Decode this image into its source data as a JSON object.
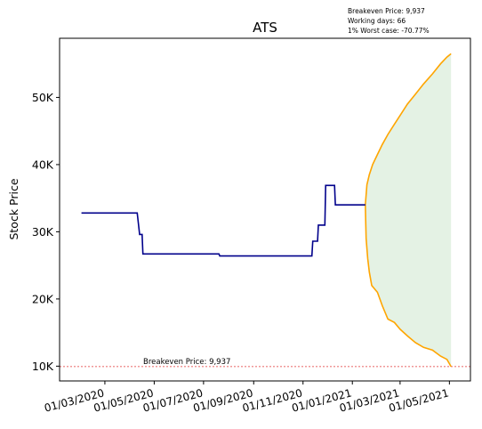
{
  "info": {
    "breakeven": "Breakeven Price: 9,937",
    "working_days": "Working days: 66",
    "worst_case": "1% Worst case: -70.77%"
  },
  "chart_data": {
    "type": "line",
    "title": "ATS",
    "xlabel": "",
    "ylabel": "Stock Price",
    "x_ticks": [
      "01/03/2020",
      "01/05/2020",
      "01/07/2020",
      "01/09/2020",
      "01/11/2020",
      "01/01/2021",
      "01/03/2021",
      "01/05/2021"
    ],
    "x_range": [
      "2020-01-05",
      "2021-05-27"
    ],
    "y_ticks": [
      10000,
      20000,
      30000,
      40000,
      50000
    ],
    "y_tick_labels": [
      "10K",
      "20K",
      "30K",
      "40K",
      "50K"
    ],
    "ylim": [
      7800,
      58800
    ],
    "grid": false,
    "breakeven": {
      "value": 9937,
      "label": "Breakeven Price: 9,937",
      "color": "#e03030"
    },
    "history": {
      "color": "#00008b",
      "points": [
        [
          "2020-02-01",
          32800
        ],
        [
          "2020-02-18",
          32800
        ],
        [
          "2020-03-10",
          32800
        ],
        [
          "2020-04-10",
          32800
        ],
        [
          "2020-04-13",
          29600
        ],
        [
          "2020-04-16",
          29600
        ],
        [
          "2020-04-17",
          26700
        ],
        [
          "2020-05-20",
          26700
        ],
        [
          "2020-06-25",
          26700
        ],
        [
          "2020-07-20",
          26700
        ],
        [
          "2020-07-21",
          26400
        ],
        [
          "2020-09-20",
          26400
        ],
        [
          "2020-10-20",
          26400
        ],
        [
          "2020-11-12",
          26400
        ],
        [
          "2020-11-13",
          28600
        ],
        [
          "2020-11-19",
          28600
        ],
        [
          "2020-11-20",
          31000
        ],
        [
          "2020-11-28",
          31000
        ],
        [
          "2020-11-29",
          36900
        ],
        [
          "2020-12-10",
          36900
        ],
        [
          "2020-12-11",
          34000
        ],
        [
          "2020-12-25",
          34000
        ],
        [
          "2021-01-17",
          34000
        ]
      ]
    },
    "forecast": {
      "color": "#ffa500",
      "fill": "#e4f2e4",
      "upper": [
        [
          "2021-01-17",
          34000
        ],
        [
          "2021-01-19",
          37000
        ],
        [
          "2021-01-22",
          38500
        ],
        [
          "2021-01-26",
          40000
        ],
        [
          "2021-02-01",
          41500
        ],
        [
          "2021-02-07",
          43000
        ],
        [
          "2021-02-14",
          44500
        ],
        [
          "2021-02-22",
          46000
        ],
        [
          "2021-03-02",
          47500
        ],
        [
          "2021-03-10",
          49000
        ],
        [
          "2021-03-20",
          50500
        ],
        [
          "2021-03-30",
          52000
        ],
        [
          "2021-04-10",
          53500
        ],
        [
          "2021-04-20",
          55000
        ],
        [
          "2021-04-28",
          56000
        ],
        [
          "2021-05-03",
          56500
        ]
      ],
      "lower": [
        [
          "2021-01-17",
          34000
        ],
        [
          "2021-01-18",
          29000
        ],
        [
          "2021-01-20",
          26000
        ],
        [
          "2021-01-22",
          24000
        ],
        [
          "2021-01-25",
          22000
        ],
        [
          "2021-02-01",
          21000
        ],
        [
          "2021-02-07",
          19000
        ],
        [
          "2021-02-14",
          17000
        ],
        [
          "2021-02-22",
          16500
        ],
        [
          "2021-03-01",
          15500
        ],
        [
          "2021-03-10",
          14500
        ],
        [
          "2021-03-20",
          13500
        ],
        [
          "2021-03-30",
          12800
        ],
        [
          "2021-04-10",
          12400
        ],
        [
          "2021-04-20",
          11500
        ],
        [
          "2021-04-28",
          11000
        ],
        [
          "2021-05-03",
          9937
        ]
      ]
    }
  }
}
